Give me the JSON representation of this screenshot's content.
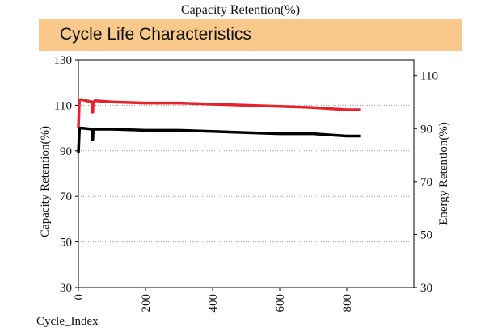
{
  "page": {
    "title": "Capacity Retention(%)",
    "banner_title": "Cycle Life Characteristics",
    "banner_color": "#f9c98c"
  },
  "chart_data": {
    "type": "line",
    "xlabel": "Cycle_Index",
    "ylabel": "Capacity Retention(%)",
    "y2label": "Energy Retention(%)",
    "xlim": [
      0,
      1000
    ],
    "ylim": [
      30,
      130
    ],
    "y2lim": [
      30,
      116
    ],
    "x_ticks": [
      0,
      200,
      400,
      600,
      800
    ],
    "y_ticks": [
      30,
      50,
      70,
      90,
      110,
      130
    ],
    "y2_ticks": [
      30,
      50,
      70,
      90,
      110
    ],
    "grid": "horizontal-dotted",
    "series": [
      {
        "axis": "left",
        "color": "#e8222a",
        "x": [
          0,
          3,
          5,
          10,
          40,
          42,
          43,
          44,
          50,
          100,
          200,
          300,
          400,
          500,
          600,
          700,
          750,
          800,
          840
        ],
        "y": [
          100,
          112,
          112.5,
          112.5,
          111.5,
          107,
          107,
          111.5,
          112,
          111.5,
          111,
          111,
          110.5,
          110,
          109.5,
          109,
          108.5,
          108,
          108
        ]
      },
      {
        "axis": "left",
        "color": "#000000",
        "x": [
          0,
          3,
          5,
          10,
          40,
          42,
          43,
          44,
          50,
          100,
          200,
          300,
          400,
          500,
          600,
          700,
          750,
          800,
          840
        ],
        "y": [
          89,
          99,
          100,
          100,
          99.5,
          95,
          95,
          99.5,
          99.5,
          99.5,
          99,
          99,
          98.5,
          98,
          97.5,
          97.5,
          97,
          96.5,
          96.5
        ]
      }
    ]
  }
}
